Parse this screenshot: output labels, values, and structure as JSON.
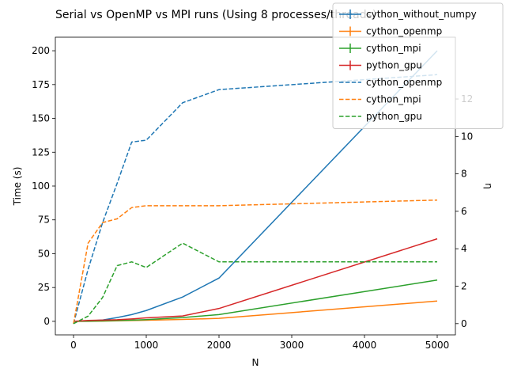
{
  "chart_data": {
    "type": "line",
    "title": "Serial vs OpenMP vs MPI runs (Using 8 processes/threads)",
    "xlabel": "N",
    "ylabel": "Time (s)",
    "y2label": "η",
    "xlim": [
      -250,
      5250
    ],
    "ylim": [
      -10,
      210
    ],
    "y2lim": [
      -0.6,
      15.3
    ],
    "xticks": [
      0,
      1000,
      2000,
      3000,
      4000,
      5000
    ],
    "yticks": [
      0,
      25,
      50,
      75,
      100,
      125,
      150,
      175,
      200
    ],
    "y2ticks": [
      0,
      2,
      4,
      6,
      8,
      10,
      12
    ],
    "grid": false,
    "legend_position": "top-right",
    "colors": {
      "blue": "#1f77b4",
      "orange": "#ff7f0e",
      "green": "#2ca02c",
      "red": "#d62728"
    },
    "time_series": [
      {
        "name": "cython_without_numpy",
        "color": "#1f77b4",
        "axis": "left",
        "style": "solid",
        "x": [
          0,
          200,
          400,
          600,
          800,
          1000,
          1500,
          2000,
          5000
        ],
        "y": [
          0,
          0.3,
          1.0,
          2.8,
          5.0,
          8.0,
          18.0,
          32.0,
          200.0
        ]
      },
      {
        "name": "cython_openmp",
        "color": "#ff7f0e",
        "axis": "left",
        "style": "solid",
        "x": [
          0,
          200,
          400,
          600,
          800,
          1000,
          1500,
          2000,
          5000
        ],
        "y": [
          0,
          0.05,
          0.2,
          0.4,
          0.6,
          0.8,
          1.4,
          2.2,
          15.0
        ]
      },
      {
        "name": "cython_mpi",
        "color": "#2ca02c",
        "axis": "left",
        "style": "solid",
        "x": [
          0,
          200,
          400,
          600,
          800,
          1000,
          1500,
          2000,
          5000
        ],
        "y": [
          0,
          0.1,
          0.3,
          0.6,
          0.9,
          1.3,
          2.8,
          5.0,
          30.5
        ]
      },
      {
        "name": "python_gpu",
        "color": "#d62728",
        "axis": "left",
        "style": "solid",
        "x": [
          0,
          200,
          400,
          600,
          800,
          1000,
          1500,
          2000,
          5000
        ],
        "y": [
          0,
          0.7,
          0.9,
          1.2,
          1.8,
          2.6,
          4.0,
          9.5,
          61.0
        ]
      }
    ],
    "efficiency_series": [
      {
        "name": "cython_openmp",
        "color": "#1f77b4",
        "axis": "right",
        "style": "dashed",
        "x": [
          0,
          200,
          400,
          600,
          800,
          1000,
          1500,
          2000,
          5000
        ],
        "y": [
          0,
          2.9,
          5.4,
          7.5,
          9.7,
          9.8,
          11.8,
          12.5,
          13.3
        ]
      },
      {
        "name": "cython_mpi",
        "color": "#ff7f0e",
        "axis": "right",
        "style": "dashed",
        "x": [
          0,
          200,
          400,
          600,
          800,
          1000,
          1500,
          2000,
          3000,
          5000
        ],
        "y": [
          0,
          4.3,
          5.4,
          5.6,
          6.2,
          6.3,
          6.3,
          6.3,
          6.4,
          6.6
        ]
      },
      {
        "name": "python_gpu",
        "color": "#2ca02c",
        "axis": "right",
        "style": "dashed",
        "x": [
          0,
          200,
          400,
          600,
          800,
          1000,
          1500,
          2000,
          5000
        ],
        "y": [
          0,
          0.4,
          1.4,
          3.1,
          3.3,
          3.0,
          4.3,
          3.3,
          3.3
        ]
      }
    ],
    "legend": [
      {
        "label": "cython_without_numpy",
        "color": "#1f77b4",
        "style": "solid"
      },
      {
        "label": "cython_openmp",
        "color": "#ff7f0e",
        "style": "solid"
      },
      {
        "label": "cython_mpi",
        "color": "#2ca02c",
        "style": "solid"
      },
      {
        "label": "python_gpu",
        "color": "#d62728",
        "style": "solid"
      },
      {
        "label": "cython_openmp",
        "color": "#1f77b4",
        "style": "dashed"
      },
      {
        "label": "cython_mpi",
        "color": "#ff7f0e",
        "style": "dashed"
      },
      {
        "label": "python_gpu",
        "color": "#2ca02c",
        "style": "dashed"
      }
    ]
  }
}
